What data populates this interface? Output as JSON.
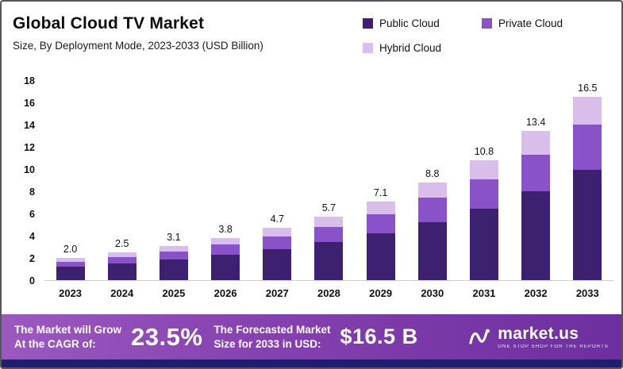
{
  "header": {
    "title": "Global Cloud TV Market",
    "subtitle": "Size, By Deployment Mode, 2023-2033 (USD Billion)"
  },
  "legend": [
    {
      "label": "Public Cloud",
      "color": "#3d2070"
    },
    {
      "label": "Private Cloud",
      "color": "#8952c8"
    },
    {
      "label": "Hybrid Cloud",
      "color": "#d9bdea"
    }
  ],
  "chart_data": {
    "type": "bar",
    "stacked": true,
    "title": "Global Cloud TV Market Size, By Deployment Mode, 2023-2033 (USD Billion)",
    "categories": [
      "2023",
      "2024",
      "2025",
      "2026",
      "2027",
      "2028",
      "2029",
      "2030",
      "2031",
      "2032",
      "2033"
    ],
    "series": [
      {
        "name": "Public Cloud",
        "color": "#3d2070",
        "values": [
          1.2,
          1.5,
          1.85,
          2.3,
          2.8,
          3.4,
          4.2,
          5.2,
          6.4,
          8.0,
          9.9
        ]
      },
      {
        "name": "Private Cloud",
        "color": "#8952c8",
        "values": [
          0.45,
          0.55,
          0.75,
          0.9,
          1.15,
          1.4,
          1.75,
          2.2,
          2.7,
          3.3,
          4.1
        ]
      },
      {
        "name": "Hybrid Cloud",
        "color": "#d9bdea",
        "values": [
          0.35,
          0.45,
          0.5,
          0.6,
          0.75,
          0.9,
          1.15,
          1.4,
          1.7,
          2.1,
          2.5
        ]
      }
    ],
    "totals": [
      "2.0",
      "2.5",
      "3.1",
      "3.8",
      "4.7",
      "5.7",
      "7.1",
      "8.8",
      "10.8",
      "13.4",
      "16.5"
    ],
    "ylim": [
      0,
      18
    ],
    "yticks": [
      0,
      2,
      4,
      6,
      8,
      10,
      12,
      14,
      16,
      18
    ],
    "grid": false,
    "legend_position": "top-right"
  },
  "footer": {
    "cagr_label": "The Market will Grow\nAt the CAGR of:",
    "cagr_value": "23.5%",
    "forecast_label": "The Forecasted Market\nSize for 2033 in USD:",
    "forecast_value": "$16.5 B",
    "brand": "market.us",
    "brand_tagline": "ONE STOP SHOP FOR THE REPORTS"
  }
}
